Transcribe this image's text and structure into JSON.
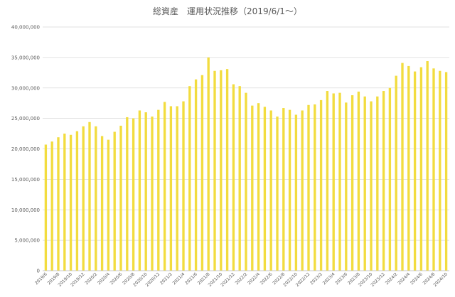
{
  "chart_data": {
    "type": "bar",
    "title": "総資産　運用状況推移（2019/6/1～）",
    "xlabel": "",
    "ylabel": "",
    "ylim": [
      0,
      40000000
    ],
    "grid": true,
    "legend": "none",
    "bar_color": "#F2DC3F",
    "y_ticks": [
      0,
      5000000,
      10000000,
      15000000,
      20000000,
      25000000,
      30000000,
      35000000,
      40000000
    ],
    "y_tick_labels": [
      "0",
      "5,000,000",
      "10,000,000",
      "15,000,000",
      "20,000,000",
      "25,000,000",
      "30,000,000",
      "35,000,000",
      "40,000,000"
    ],
    "categories": [
      "2019/6",
      "2019/7",
      "2019/8",
      "2019/9",
      "2019/10",
      "2019/11",
      "2019/12",
      "2020/1",
      "2020/2",
      "2020/3",
      "2020/4",
      "2020/5",
      "2020/6",
      "2020/7",
      "2020/8",
      "2020/9",
      "2020/10",
      "2020/11",
      "2020/12",
      "2021/1",
      "2021/2",
      "2021/3",
      "2021/4",
      "2021/5",
      "2021/6",
      "2021/7",
      "2021/8",
      "2021/9",
      "2021/10",
      "2021/11",
      "2021/12",
      "2022/1",
      "2022/2",
      "2022/3",
      "2022/4",
      "2022/5",
      "2022/6",
      "2022/7",
      "2022/8",
      "2022/9",
      "2022/10",
      "2022/11",
      "2022/12",
      "2023/1",
      "2023/2",
      "2023/3",
      "2023/4",
      "2023/5",
      "2023/6",
      "2023/7",
      "2023/8",
      "2023/9",
      "2023/10",
      "2023/11",
      "2023/12",
      "2024/1",
      "2024/2",
      "2024/3",
      "2024/4",
      "2024/5",
      "2024/6",
      "2024/7",
      "2024/8",
      "2024/9",
      "2024/10"
    ],
    "x_tick_labels": [
      "2019/6",
      "2019/8",
      "2019/10",
      "2019/12",
      "2020/2",
      "2020/4",
      "2020/6",
      "2020/8",
      "2020/10",
      "2020/12",
      "2021/2",
      "2021/4",
      "2021/6",
      "2021/8",
      "2021/10",
      "2021/12",
      "2022/2",
      "2022/4",
      "2022/6",
      "2022/8",
      "2022/10",
      "2022/12",
      "2023/2",
      "2023/4",
      "2023/6",
      "2023/8",
      "2023/10",
      "2023/12",
      "2024/2",
      "2024/4",
      "2024/6",
      "2024/8",
      "2024/10"
    ],
    "values": [
      20700000,
      21200000,
      21900000,
      22500000,
      22300000,
      22900000,
      23700000,
      24400000,
      23700000,
      22100000,
      21500000,
      22800000,
      23800000,
      25200000,
      25000000,
      26300000,
      26000000,
      25300000,
      26400000,
      27700000,
      27000000,
      27000000,
      27800000,
      30300000,
      31400000,
      32100000,
      35000000,
      32800000,
      32900000,
      33100000,
      30600000,
      30300000,
      29200000,
      27100000,
      27500000,
      26900000,
      26300000,
      25300000,
      26700000,
      26400000,
      25600000,
      26300000,
      27200000,
      27300000,
      28000000,
      29500000,
      29100000,
      29200000,
      27600000,
      28800000,
      29400000,
      28600000,
      27800000,
      28600000,
      29500000,
      30000000,
      32000000,
      34100000,
      33600000,
      32700000,
      33400000,
      34400000,
      33200000,
      32800000,
      32600000
    ]
  }
}
